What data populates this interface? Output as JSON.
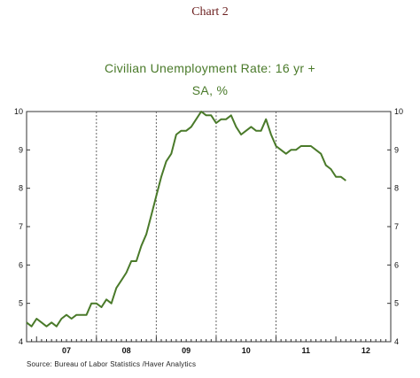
{
  "page": {
    "heading": "Chart 2"
  },
  "chart_data": {
    "type": "line",
    "title": "Civilian Unemployment Rate: 16 yr +",
    "subtitle": "SA, %",
    "source": "Source: Bureau of Labor Statistics /Haver Analytics",
    "xlabel": "",
    "ylabel": "",
    "x_range": [
      "2006-11",
      "2012-12"
    ],
    "ylim": [
      4,
      10
    ],
    "y_ticks": [
      "4",
      "5",
      "6",
      "7",
      "8",
      "9",
      "10"
    ],
    "year_labels": [
      "07",
      "08",
      "09",
      "10",
      "11",
      "12"
    ],
    "grid": "vertical dashed at year boundaries",
    "line_color": "#4a7a2a",
    "series": [
      {
        "x": [
          "2006-11",
          "2006-12",
          "2007-01",
          "2007-02",
          "2007-03",
          "2007-04",
          "2007-05",
          "2007-06",
          "2007-07",
          "2007-08",
          "2007-09",
          "2007-10",
          "2007-11",
          "2007-12",
          "2008-01",
          "2008-02",
          "2008-03",
          "2008-04",
          "2008-05",
          "2008-06",
          "2008-07",
          "2008-08",
          "2008-09",
          "2008-10",
          "2008-11",
          "2008-12",
          "2009-01",
          "2009-02",
          "2009-03",
          "2009-04",
          "2009-05",
          "2009-06",
          "2009-07",
          "2009-08",
          "2009-09",
          "2009-10",
          "2009-11",
          "2009-12",
          "2010-01",
          "2010-02",
          "2010-03",
          "2010-04",
          "2010-05",
          "2010-06",
          "2010-07",
          "2010-08",
          "2010-09",
          "2010-10",
          "2010-11",
          "2010-12",
          "2011-01",
          "2011-02",
          "2011-03",
          "2011-04",
          "2011-05",
          "2011-06",
          "2011-07",
          "2011-08",
          "2011-09",
          "2011-10",
          "2011-11",
          "2011-12",
          "2012-01",
          "2012-02",
          "2012-03"
        ],
        "values": [
          4.5,
          4.4,
          4.6,
          4.5,
          4.4,
          4.5,
          4.4,
          4.6,
          4.7,
          4.6,
          4.7,
          4.7,
          4.7,
          5.0,
          5.0,
          4.9,
          5.1,
          5.0,
          5.4,
          5.6,
          5.8,
          6.1,
          6.1,
          6.5,
          6.8,
          7.3,
          7.8,
          8.3,
          8.7,
          8.9,
          9.4,
          9.5,
          9.5,
          9.6,
          9.8,
          10.0,
          9.9,
          9.9,
          9.7,
          9.8,
          9.8,
          9.9,
          9.6,
          9.4,
          9.5,
          9.6,
          9.5,
          9.5,
          9.8,
          9.4,
          9.1,
          9.0,
          8.9,
          9.0,
          9.0,
          9.1,
          9.1,
          9.1,
          9.0,
          8.9,
          8.6,
          8.5,
          8.3,
          8.3,
          8.2
        ]
      }
    ]
  }
}
